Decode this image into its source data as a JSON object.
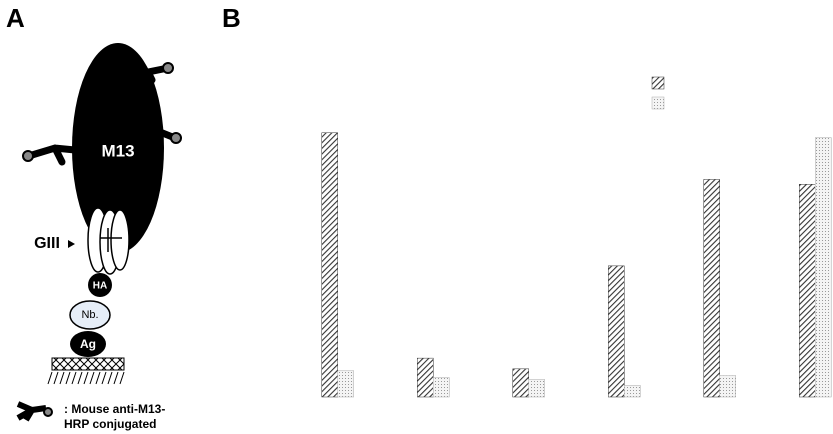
{
  "panel_labels": [
    "A",
    "B"
  ],
  "diagram": {
    "phage": "M13",
    "gene": "GIII",
    "tag": "HA",
    "nanobody": "Nb.",
    "antigen": "Ag",
    "legend": [
      ": Mouse anti-M13-",
      "HRP conjugated"
    ]
  },
  "chart_data": {
    "type": "bar",
    "categories": [
      null,
      null,
      null,
      null,
      null,
      null
    ],
    "series": [
      {
        "color": "#333333",
        "values": [
          272,
          40,
          29,
          135,
          224,
          219
        ]
      },
      {
        "color": "#aaaaaa",
        "values": [
          27,
          20,
          18,
          12,
          22,
          267
        ]
      }
    ],
    "ylim": [
      0,
      280
    ]
  }
}
